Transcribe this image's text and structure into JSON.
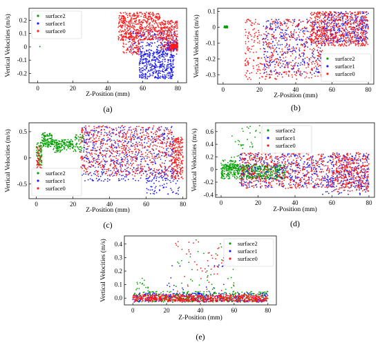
{
  "chart_data": [
    {
      "type": "scatter",
      "caption": "(a)",
      "xlabel": "Z-Position (mm)",
      "ylabel": "Vertical Velocities (m/s)",
      "xlim": [
        -5,
        85
      ],
      "ylim": [
        -0.27,
        0.29
      ],
      "xticks": [
        0,
        20,
        40,
        60,
        80
      ],
      "yticks": [
        -0.2,
        -0.1,
        0.0,
        0.1,
        0.2
      ],
      "ytick_labels": [
        "-0.2",
        "-0.1",
        "0",
        "0.1",
        "0.2"
      ],
      "legend": "top-left",
      "series": [
        {
          "name": "surface2",
          "color": "#00a000",
          "points": [
            [
              1.2,
              0.002
            ]
          ]
        },
        {
          "name": "surface1",
          "color": "#1a1aff",
          "clusters": [
            {
              "x": [
                52,
                80
              ],
              "y": [
                -0.06,
                0.12
              ],
              "n": 160
            },
            {
              "x": [
                58,
                78
              ],
              "y": [
                -0.24,
                -0.02
              ],
              "n": 420
            },
            {
              "x": [
                74,
                80
              ],
              "y": [
                -0.02,
                0.04
              ],
              "n": 80
            }
          ]
        },
        {
          "name": "surface0",
          "color": "#ff1a1a",
          "clusters": [
            {
              "x": [
                46,
                70
              ],
              "y": [
                0.05,
                0.26
              ],
              "n": 500
            },
            {
              "x": [
                48,
                58
              ],
              "y": [
                -0.06,
                0.1
              ],
              "n": 110
            },
            {
              "x": [
                70,
                80
              ],
              "y": [
                -0.03,
                0.2
              ],
              "n": 260
            },
            {
              "x": [
                76,
                80
              ],
              "y": [
                -0.01,
                0.02
              ],
              "n": 160
            }
          ]
        }
      ]
    },
    {
      "type": "scatter",
      "caption": "(b)",
      "xlabel": "Z-Position (mm)",
      "ylabel": "Vertical Velocities (m/s)",
      "xlim": [
        -3,
        83
      ],
      "ylim": [
        -0.36,
        0.12
      ],
      "xticks": [
        0,
        20,
        40,
        60,
        80
      ],
      "yticks": [
        -0.3,
        -0.2,
        -0.1,
        0.0,
        0.1
      ],
      "ytick_labels": [
        "-0.3",
        "-0.2",
        "-0.1",
        "0",
        "0.1"
      ],
      "legend": "bottom-right",
      "series": [
        {
          "name": "surface2",
          "color": "#00a000",
          "clusters": [
            {
              "x": [
                0.5,
                2.5
              ],
              "y": [
                -0.005,
                0.008
              ],
              "n": 40
            }
          ]
        },
        {
          "name": "surface1",
          "color": "#1a1aff",
          "clusters": [
            {
              "x": [
                22,
                55
              ],
              "y": [
                -0.3,
                0.05
              ],
              "n": 330
            },
            {
              "x": [
                55,
                80
              ],
              "y": [
                -0.1,
                0.1
              ],
              "n": 300
            }
          ]
        },
        {
          "name": "surface0",
          "color": "#ff1a1a",
          "clusters": [
            {
              "x": [
                12,
                55
              ],
              "y": [
                -0.33,
                0.05
              ],
              "n": 480
            },
            {
              "x": [
                48,
                80
              ],
              "y": [
                -0.12,
                0.1
              ],
              "n": 620
            }
          ]
        }
      ]
    },
    {
      "type": "scatter",
      "caption": "(c)",
      "xlabel": "Z-Position (mm)",
      "ylabel": "Vertical Velocities (m/s)",
      "xlim": [
        -4,
        82
      ],
      "ylim": [
        -0.78,
        0.67
      ],
      "xticks": [
        0,
        20,
        40,
        60,
        80
      ],
      "yticks": [
        -0.5,
        0.0,
        0.5
      ],
      "ytick_labels": [
        "-0.5",
        "0",
        "0.5"
      ],
      "legend": "bottom-left",
      "series": [
        {
          "name": "surface2",
          "color": "#00a000",
          "clusters": [
            {
              "x": [
                0,
                3
              ],
              "y": [
                -0.15,
                0.3
              ],
              "n": 80
            },
            {
              "x": [
                3,
                9
              ],
              "y": [
                0.2,
                0.48
              ],
              "n": 110
            },
            {
              "x": [
                9,
                14
              ],
              "y": [
                0.1,
                0.35
              ],
              "n": 80
            },
            {
              "x": [
                14,
                20
              ],
              "y": [
                0.15,
                0.35
              ],
              "n": 70
            },
            {
              "x": [
                20,
                26
              ],
              "y": [
                0.1,
                0.45
              ],
              "n": 50
            }
          ]
        },
        {
          "name": "surface1",
          "color": "#1a1aff",
          "clusters": [
            {
              "x": [
                25,
                75
              ],
              "y": [
                -0.45,
                0.6
              ],
              "n": 520
            },
            {
              "x": [
                60,
                78
              ],
              "y": [
                -0.7,
                -0.25
              ],
              "n": 90
            }
          ]
        },
        {
          "name": "surface0",
          "color": "#ff1a1a",
          "clusters": [
            {
              "x": [
                24,
                74
              ],
              "y": [
                -0.35,
                0.62
              ],
              "n": 620
            },
            {
              "x": [
                74,
                80
              ],
              "y": [
                -0.4,
                0.4
              ],
              "n": 220
            },
            {
              "x": [
                0,
                3
              ],
              "y": [
                -0.2,
                0.25
              ],
              "n": 40
            }
          ]
        }
      ]
    },
    {
      "type": "scatter",
      "caption": "(d)",
      "xlabel": "Z-Position (mm)",
      "ylabel": "Vertical Velocities (m/s)",
      "xlim": [
        -3,
        83
      ],
      "ylim": [
        -0.44,
        0.74
      ],
      "xticks": [
        0,
        20,
        40,
        60,
        80
      ],
      "yticks": [
        -0.4,
        -0.2,
        0.0,
        0.2,
        0.4,
        0.6
      ],
      "ytick_labels": [
        "-0.4",
        "-0.2",
        "0",
        "0.2",
        "0.4",
        "0.6"
      ],
      "legend": "top-center",
      "series": [
        {
          "name": "surface2",
          "color": "#00a000",
          "clusters": [
            {
              "x": [
                0,
                35
              ],
              "y": [
                -0.15,
                0.08
              ],
              "n": 520
            },
            {
              "x": [
                5,
                25
              ],
              "y": [
                0.1,
                0.7
              ],
              "n": 45
            },
            {
              "x": [
                0,
                10
              ],
              "y": [
                0.0,
                0.15
              ],
              "n": 60
            }
          ]
        },
        {
          "name": "surface1",
          "color": "#1a1aff",
          "clusters": [
            {
              "x": [
                10,
                80
              ],
              "y": [
                -0.28,
                0.25
              ],
              "n": 560
            },
            {
              "x": [
                55,
                80
              ],
              "y": [
                -0.4,
                -0.1
              ],
              "n": 70
            }
          ]
        },
        {
          "name": "surface0",
          "color": "#ff1a1a",
          "clusters": [
            {
              "x": [
                10,
                80
              ],
              "y": [
                -0.3,
                0.27
              ],
              "n": 700
            },
            {
              "x": [
                60,
                80
              ],
              "y": [
                -0.36,
                0.2
              ],
              "n": 180
            }
          ]
        }
      ]
    },
    {
      "type": "scatter",
      "caption": "(e)",
      "xlabel": "Z-Position (mm)",
      "ylabel": "Vertical Velocities (m/s)",
      "xlim": [
        -5,
        85
      ],
      "ylim": [
        -0.05,
        0.46
      ],
      "xticks": [
        0,
        20,
        40,
        60,
        80
      ],
      "yticks": [
        0.0,
        0.1,
        0.2,
        0.3,
        0.4
      ],
      "ytick_labels": [
        "0.0",
        "0.1",
        "0.2",
        "0.3",
        "0.4"
      ],
      "legend": "top-right",
      "series": [
        {
          "name": "surface2",
          "color": "#00a000",
          "clusters": [
            {
              "x": [
                0,
                80
              ],
              "y": [
                -0.03,
                0.05
              ],
              "n": 380
            },
            {
              "x": [
                25,
                60
              ],
              "y": [
                0.05,
                0.45
              ],
              "n": 40
            },
            {
              "x": [
                0,
                10
              ],
              "y": [
                0.05,
                0.15
              ],
              "n": 15
            }
          ]
        },
        {
          "name": "surface1",
          "color": "#1a1aff",
          "clusters": [
            {
              "x": [
                0,
                80
              ],
              "y": [
                -0.03,
                0.04
              ],
              "n": 300
            },
            {
              "x": [
                20,
                60
              ],
              "y": [
                0.05,
                0.25
              ],
              "n": 20
            }
          ]
        },
        {
          "name": "surface0",
          "color": "#ff1a1a",
          "clusters": [
            {
              "x": [
                0,
                80
              ],
              "y": [
                -0.025,
                0.025
              ],
              "n": 700
            },
            {
              "x": [
                25,
                60
              ],
              "y": [
                0.04,
                0.43
              ],
              "n": 50
            }
          ]
        }
      ]
    }
  ]
}
